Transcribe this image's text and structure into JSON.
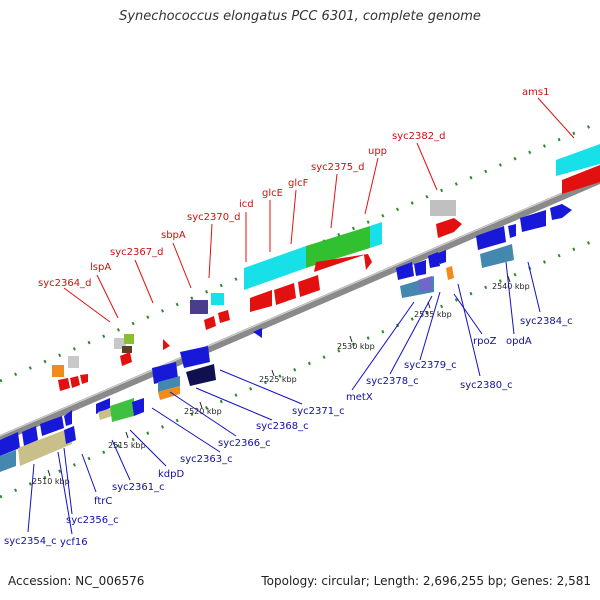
{
  "header": {
    "title": "Synechococcus elongatus PCC 6301, complete genome"
  },
  "footer": {
    "accession": "Accession: NC_006576",
    "summary": "Topology: circular; Length: 2,696,255 bp; Genes: 2,581"
  },
  "scale": {
    "ticks": [
      "2510 kbp",
      "2515 kbp",
      "2520 kbp",
      "2525 kbp",
      "2530 kbp",
      "2535 kbp",
      "2540 kbp"
    ]
  },
  "colors": {
    "forward_label": "#cc1010",
    "reverse_label": "#1010a8",
    "backbone": "#8a8a8a"
  },
  "genes_forward": [
    "syc2364_d",
    "lspA",
    "syc2367_d",
    "sbpA",
    "syc2370_d",
    "icd",
    "glcE",
    "glcF",
    "syc2375_d",
    "upp",
    "syc2382_d",
    "ams1"
  ],
  "genes_reverse": [
    "syc2354_c",
    "ycf16",
    "syc2356_c",
    "ftrC",
    "syc2361_c",
    "kdpD",
    "syc2363_c",
    "syc2366_c",
    "syc2368_c",
    "syc2371_c",
    "metX",
    "syc2378_c",
    "syc2379_c",
    "rpoZ",
    "syc2380_c",
    "opdA",
    "syc2384_c"
  ]
}
